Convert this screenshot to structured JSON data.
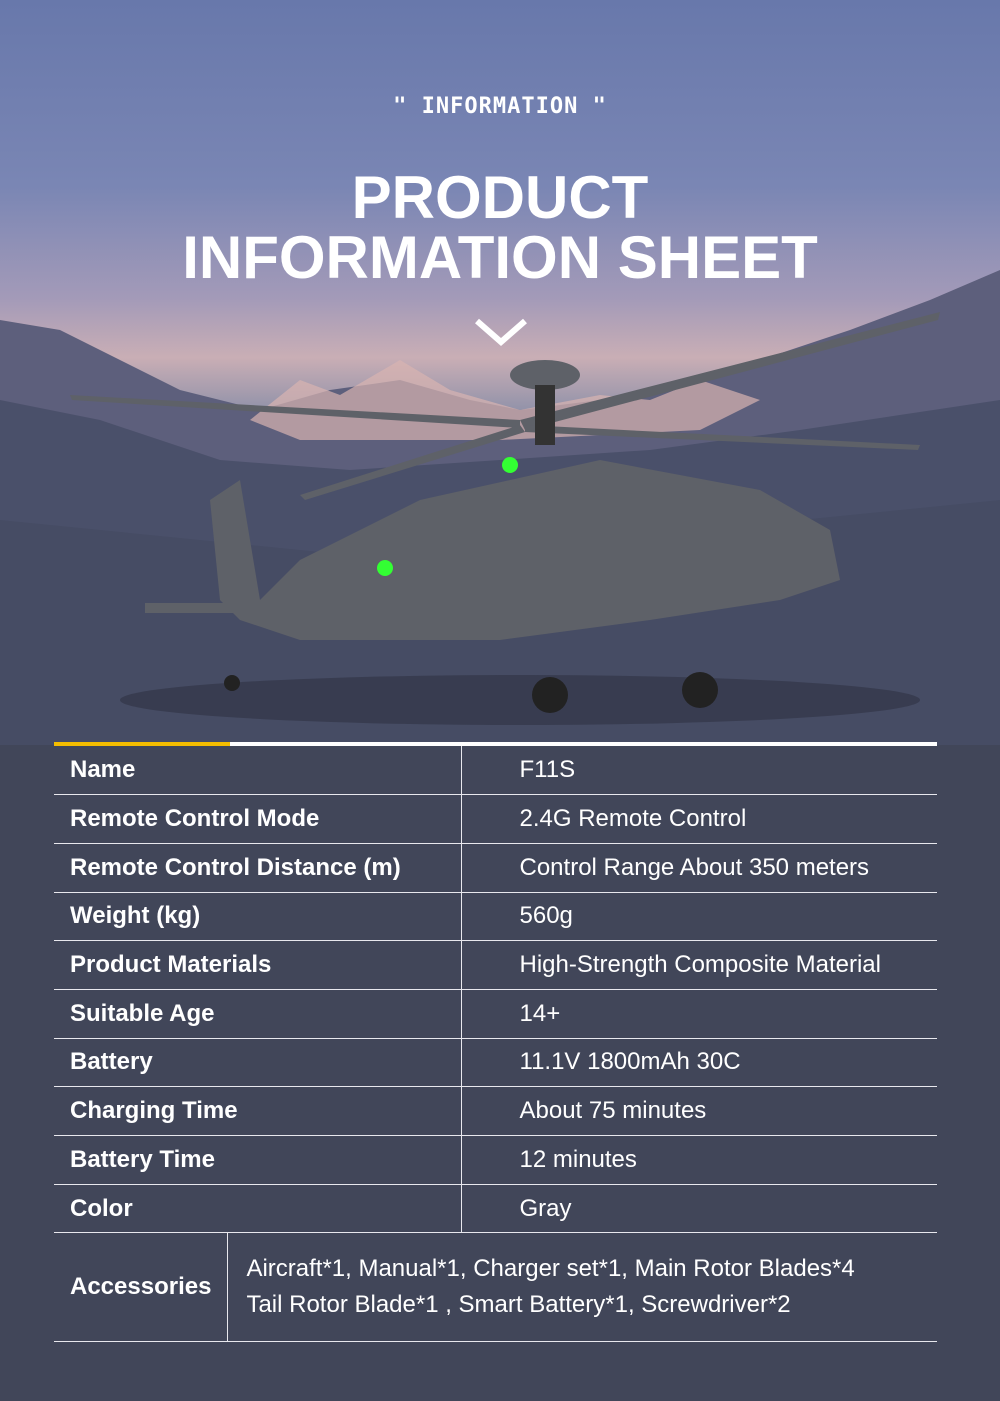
{
  "header": {
    "kicker": "\" INFORMATION \"",
    "title_line1": "PRODUCT",
    "title_line2": "INFORMATION SHEET"
  },
  "colors": {
    "accent": "#f5bd00",
    "background": "#414659"
  },
  "specs": [
    {
      "label": "Name",
      "value": "F11S"
    },
    {
      "label": "Remote Control Mode",
      "value": "2.4G Remote Control"
    },
    {
      "label": "Remote Control Distance (m)",
      "value": "Control Range About 350 meters"
    },
    {
      "label": "Weight (kg)",
      "value": "560g"
    },
    {
      "label": "Product Materials",
      "value": "High-Strength Composite Material"
    },
    {
      "label": "Suitable Age",
      "value": "14+"
    },
    {
      "label": "Battery",
      "value": "11.1V 1800mAh 30C"
    },
    {
      "label": "Charging Time",
      "value": "About 75 minutes"
    },
    {
      "label": "Battery Time",
      "value": "12 minutes"
    },
    {
      "label": "Color",
      "value": "Gray"
    }
  ],
  "accessories": {
    "label": "Accessories",
    "line1": "Aircraft*1, Manual*1, Charger set*1, Main Rotor Blades*4",
    "line2": "Tail Rotor Blade*1 , Smart Battery*1, Screwdriver*2"
  }
}
